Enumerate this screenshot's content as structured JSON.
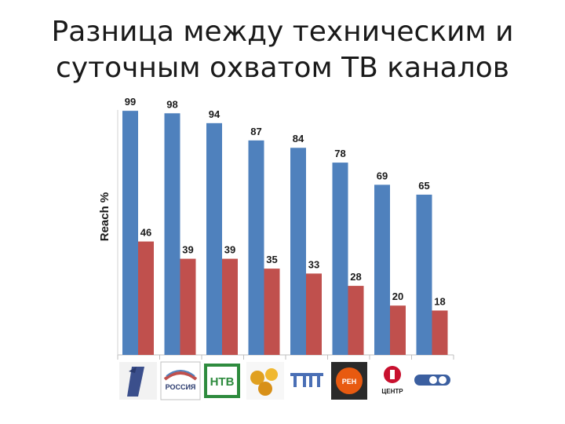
{
  "slide": {
    "title_line1": "Разница между техническим и",
    "title_line2": "суточным охватом ТВ каналов"
  },
  "chart_data": {
    "type": "bar",
    "title": "",
    "xlabel": "",
    "ylabel": "Reach %",
    "ylim": [
      0,
      100
    ],
    "grid": false,
    "legend": "none",
    "categories": [
      "Первый канал",
      "Россия",
      "НТВ",
      "СТС",
      "ТНТ",
      "РЕН",
      "ТВ Центр",
      "ТВ-3"
    ],
    "series": [
      {
        "values": [
          99,
          98,
          94,
          87,
          84,
          78,
          69,
          65
        ],
        "color": "#4f81bd"
      },
      {
        "values": [
          46,
          39,
          39,
          35,
          33,
          28,
          20,
          18
        ],
        "color": "#c0504d"
      }
    ]
  },
  "logos": [
    {
      "icon": "pervyi-kanal-logo",
      "text": "1"
    },
    {
      "icon": "rossiya-logo",
      "text": "РОССИЯ"
    },
    {
      "icon": "ntv-logo",
      "text": "НТВ"
    },
    {
      "icon": "sts-logo",
      "text": ""
    },
    {
      "icon": "tnt-logo",
      "text": "ТНТ"
    },
    {
      "icon": "ren-logo",
      "text": "РЕН"
    },
    {
      "icon": "tv-centr-logo",
      "text": "ЦЕНТР"
    },
    {
      "icon": "tv3-logo",
      "text": ""
    }
  ]
}
